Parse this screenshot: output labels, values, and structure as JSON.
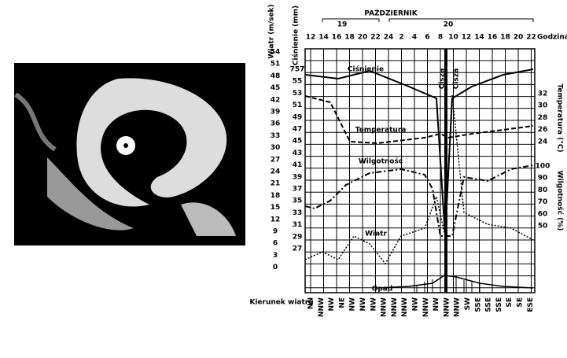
{
  "header": {
    "month": "PAŹDZIERNIK",
    "days": [
      "19",
      "20"
    ],
    "hour_title": "Godzina"
  },
  "hours": [
    "12",
    "14",
    "16",
    "18",
    "20",
    "22",
    "24",
    "2",
    "4",
    "6",
    "8",
    "10",
    "12",
    "14",
    "16",
    "18",
    "20",
    "22"
  ],
  "left_axes": {
    "wind_title": "Wiatr (m/sek)",
    "wind_ticks": [
      "54",
      "51",
      "48",
      "45",
      "42",
      "39",
      "36",
      "33",
      "30",
      "27",
      "24",
      "21",
      "18",
      "15",
      "12",
      "9",
      "6",
      "3",
      "0"
    ],
    "pressure_title": "Ciśnienie (mm)",
    "pressure_ticks": [
      "757",
      "55",
      "53",
      "51",
      "49",
      "47",
      "45",
      "43",
      "41",
      "39",
      "37",
      "35",
      "33",
      "31",
      "29",
      "27"
    ]
  },
  "right_axes": {
    "temperature_title": "Temperatura (°C)",
    "temperature_ticks": [
      "32",
      "30",
      "28",
      "26",
      "24"
    ],
    "humidity_title": "Wilgotność (%)",
    "humidity_ticks": [
      "100",
      "90",
      "80",
      "70",
      "60",
      "50"
    ]
  },
  "series_labels": {
    "pressure": "Ciśnienie",
    "temperature": "Temperatura",
    "humidity": "Wilgotność",
    "wind": "Wiatr",
    "rain": "Opad",
    "calm": [
      "Cisza",
      "Cisza"
    ]
  },
  "wind_direction": {
    "title": "Kierunek wiatru",
    "labels": [
      "NN",
      "NNW",
      "NW",
      "NE",
      "NW",
      "NW",
      "NW",
      "NNW",
      "NNW",
      "NNW",
      "NW",
      "NNW",
      "NW",
      "NNW",
      "NNW",
      "SW",
      "SSE",
      "SSE",
      "SSE",
      "SE",
      "SE",
      "ESE"
    ]
  }
}
